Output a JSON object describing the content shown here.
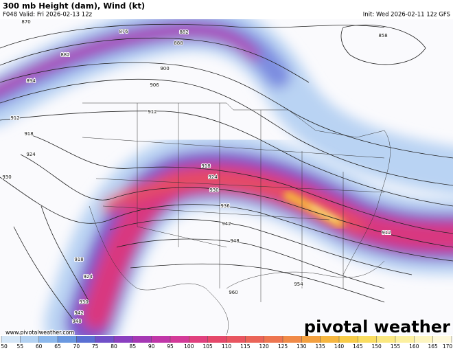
{
  "header": {
    "title": "300 mb Height (dam), Wind (kt)",
    "valid": "F048 Valid: Fri 2026-02-13 12z",
    "init": "Init: Wed 2026-02-11 12z GFS"
  },
  "watermark": {
    "logo": "pivotal weather",
    "url": "www.pivotalweather.com"
  },
  "colorbar": {
    "ticks": [
      50,
      55,
      60,
      65,
      70,
      75,
      80,
      85,
      90,
      95,
      100,
      105,
      110,
      115,
      120,
      125,
      130,
      135,
      140,
      145,
      150,
      155,
      160,
      165,
      170
    ],
    "colors": [
      "#d4e6f7",
      "#b3d2f2",
      "#8cb8ec",
      "#6a98e0",
      "#5a6fd3",
      "#7050c8",
      "#8a3fc0",
      "#a538b4",
      "#c036a8",
      "#d33a98",
      "#e0407e",
      "#e5486a",
      "#e85560",
      "#ea6458",
      "#ed7550",
      "#f08a48",
      "#f3a040",
      "#f6b640",
      "#f8cc48",
      "#fadd60",
      "#fbe880",
      "#fcf0a0",
      "#fdf5c0",
      "#fef9dc"
    ]
  },
  "contour_labels": [
    870,
    876,
    882,
    888,
    882,
    894,
    900,
    906,
    912,
    912,
    918,
    918,
    924,
    924,
    930,
    930,
    936,
    942,
    948,
    954,
    960,
    858,
    918,
    924,
    930,
    942,
    948,
    912
  ]
}
